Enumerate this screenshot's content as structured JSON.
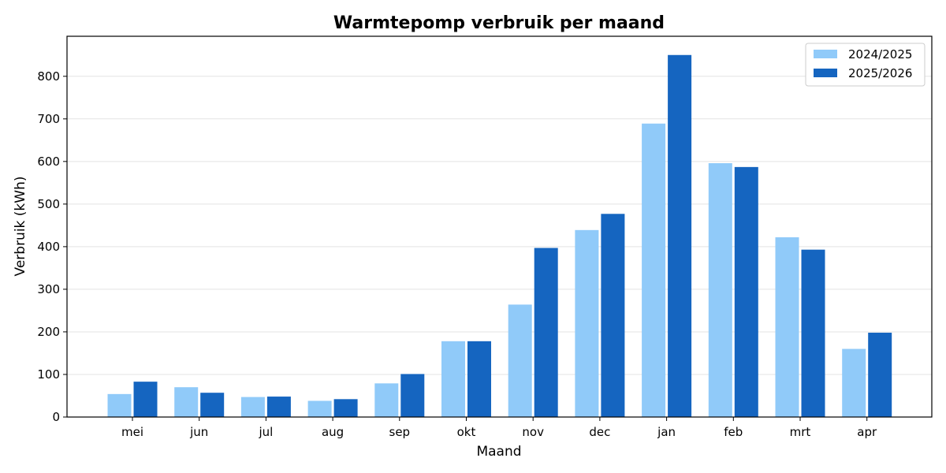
{
  "chart_data": {
    "type": "bar",
    "title": "Warmtepomp verbruik per maand",
    "xlabel": "Maand",
    "ylabel": "Verbruik (kWh)",
    "categories": [
      "mei",
      "jun",
      "jul",
      "aug",
      "sep",
      "okt",
      "nov",
      "dec",
      "jan",
      "feb",
      "mrt",
      "apr"
    ],
    "series": [
      {
        "name": "2024/2025",
        "color": "#90CAF9",
        "values": [
          54,
          70,
          47,
          38,
          79,
          178,
          264,
          439,
          689,
          596,
          422,
          160
        ]
      },
      {
        "name": "2025/2026",
        "color": "#1565C0",
        "values": [
          83,
          57,
          48,
          42,
          101,
          178,
          397,
          477,
          850,
          587,
          393,
          198
        ]
      }
    ],
    "ylim": [
      0,
      894
    ],
    "yticks": [
      0,
      100,
      200,
      300,
      400,
      500,
      600,
      700,
      800
    ],
    "grid": "horizontal",
    "legend_position": "top-right"
  }
}
